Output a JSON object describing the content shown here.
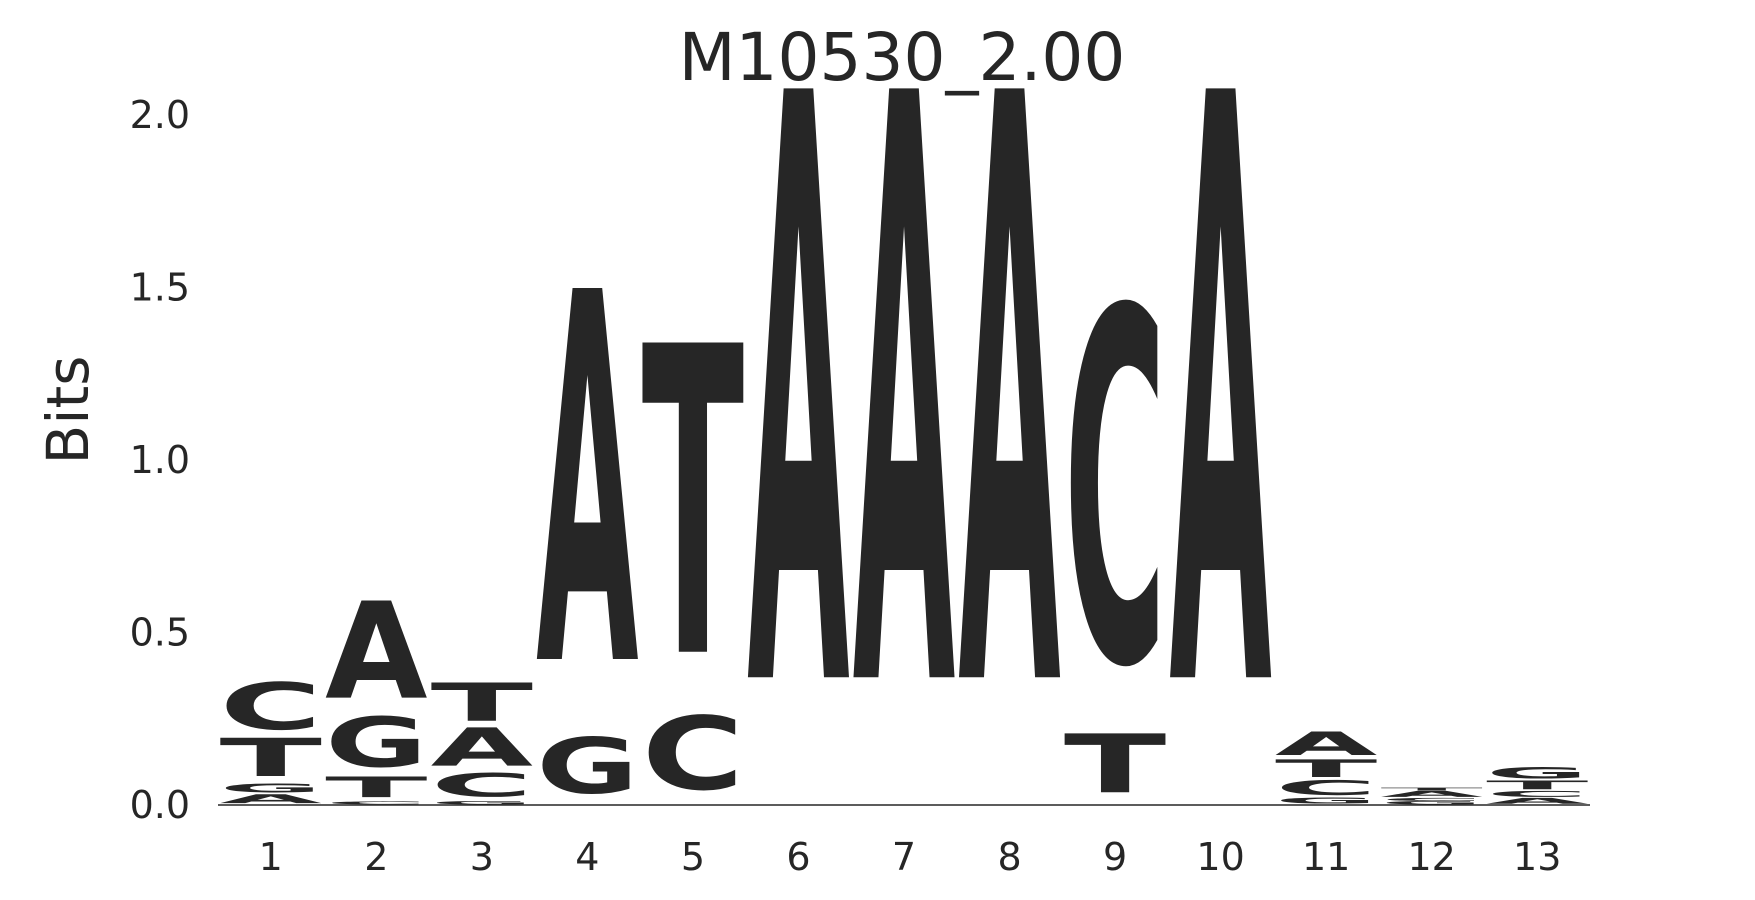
{
  "chart_data": {
    "type": "sequence-logo",
    "title": "M10530_2.00",
    "ylabel": "Bits",
    "xlabel": "",
    "ylim": [
      0,
      2.0
    ],
    "yticks": [
      "0.0",
      "0.5",
      "1.0",
      "1.5",
      "2.0"
    ],
    "ytick_values": [
      0,
      0.5,
      1.0,
      1.5,
      2.0
    ],
    "positions": [
      "1",
      "2",
      "3",
      "4",
      "5",
      "6",
      "7",
      "8",
      "9",
      "10",
      "11",
      "12",
      "13"
    ],
    "colors": {
      "A": "#008000",
      "C": "#0000ff",
      "G": "#ffa500",
      "T": "#ff0000"
    },
    "stacks": [
      [
        {
          "letter": "A",
          "bits": 0.03
        },
        {
          "letter": "G",
          "bits": 0.03
        },
        {
          "letter": "T",
          "bits": 0.13
        },
        {
          "letter": "C",
          "bits": 0.16
        }
      ],
      [
        {
          "letter": "C",
          "bits": 0.01
        },
        {
          "letter": "T",
          "bits": 0.07
        },
        {
          "letter": "G",
          "bits": 0.17
        },
        {
          "letter": "A",
          "bits": 0.33
        }
      ],
      [
        {
          "letter": "G",
          "bits": 0.01
        },
        {
          "letter": "C",
          "bits": 0.08
        },
        {
          "letter": "A",
          "bits": 0.13
        },
        {
          "letter": "T",
          "bits": 0.13
        }
      ],
      [
        {
          "letter": "G",
          "bits": 0.19
        },
        {
          "letter": "A",
          "bits": 1.26
        }
      ],
      [
        {
          "letter": "C",
          "bits": 0.25
        },
        {
          "letter": "T",
          "bits": 1.05
        }
      ],
      [
        {
          "letter": "A",
          "bits": 2.0
        }
      ],
      [
        {
          "letter": "A",
          "bits": 2.0
        }
      ],
      [
        {
          "letter": "A",
          "bits": 2.0
        }
      ],
      [
        {
          "letter": "T",
          "bits": 0.2
        },
        {
          "letter": "C",
          "bits": 1.2
        }
      ],
      [
        {
          "letter": "A",
          "bits": 2.0
        }
      ],
      [
        {
          "letter": "G",
          "bits": 0.02
        },
        {
          "letter": "C",
          "bits": 0.05
        },
        {
          "letter": "T",
          "bits": 0.06
        },
        {
          "letter": "A",
          "bits": 0.08
        }
      ],
      [
        {
          "letter": "G",
          "bits": 0.01
        },
        {
          "letter": "C",
          "bits": 0.01
        },
        {
          "letter": "A",
          "bits": 0.02
        },
        {
          "letter": "T",
          "bits": 0.01
        }
      ],
      [
        {
          "letter": "A",
          "bits": 0.02
        },
        {
          "letter": "C",
          "bits": 0.02
        },
        {
          "letter": "T",
          "bits": 0.03
        },
        {
          "letter": "G",
          "bits": 0.04
        }
      ]
    ]
  }
}
